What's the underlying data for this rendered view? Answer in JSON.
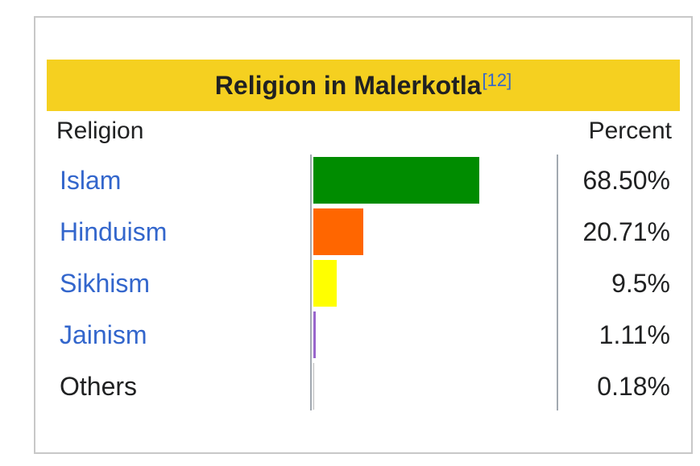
{
  "chart_data": {
    "type": "bar",
    "orientation": "horizontal",
    "title": "Religion in Malerkotla",
    "title_ref": "[12]",
    "column_headers": {
      "label": "Religion",
      "value": "Percent"
    },
    "categories": [
      "Islam",
      "Hinduism",
      "Sikhism",
      "Jainism",
      "Others"
    ],
    "values": [
      68.5,
      20.71,
      9.5,
      1.11,
      0.18
    ],
    "value_labels": [
      "68.50%",
      "20.71%",
      "9.5%",
      "1.11%",
      "0.18%"
    ],
    "colors": [
      "#008c00",
      "#ff6600",
      "#ffff00",
      "#9966cc",
      "#bbbbbb"
    ],
    "linked": [
      true,
      true,
      true,
      true,
      false
    ],
    "xlim": [
      0,
      100
    ]
  }
}
